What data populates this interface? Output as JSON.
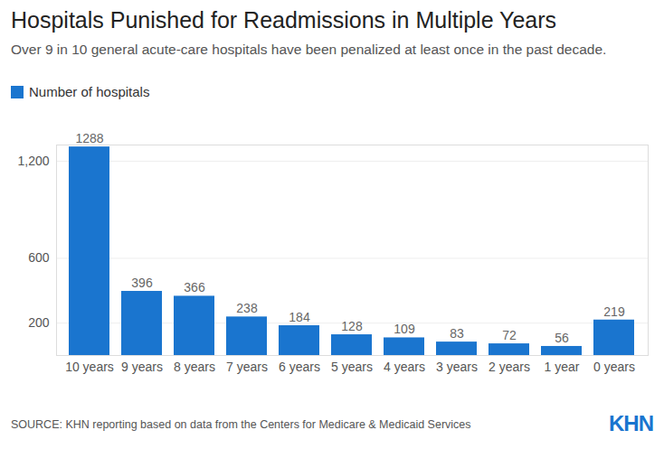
{
  "chart_data": {
    "type": "bar",
    "title": "Hospitals Punished for Readmissions in Multiple Years",
    "subtitle": "Over 9 in 10 general acute-care hospitals have been penalized at least once in the past decade.",
    "source": "SOURCE: KHN reporting based on data from the Centers for Medicare & Medicaid Services",
    "logo": "KHN",
    "categories": [
      "10 years",
      "9 years",
      "8 years",
      "7 years",
      "6 years",
      "5 years",
      "4 years",
      "3 years",
      "2 years",
      "1 year",
      "0 years"
    ],
    "series": [
      {
        "name": "Number of hospitals",
        "color": "#1a75cf",
        "values": [
          1288,
          396,
          366,
          238,
          184,
          128,
          109,
          83,
          72,
          56,
          219
        ]
      }
    ],
    "ylim": [
      0,
      1300
    ],
    "yticks": [
      200,
      600,
      {
        "value": 1200,
        "label": "1,200"
      }
    ],
    "grid": true,
    "legend": "top-left",
    "data_labels": true
  }
}
